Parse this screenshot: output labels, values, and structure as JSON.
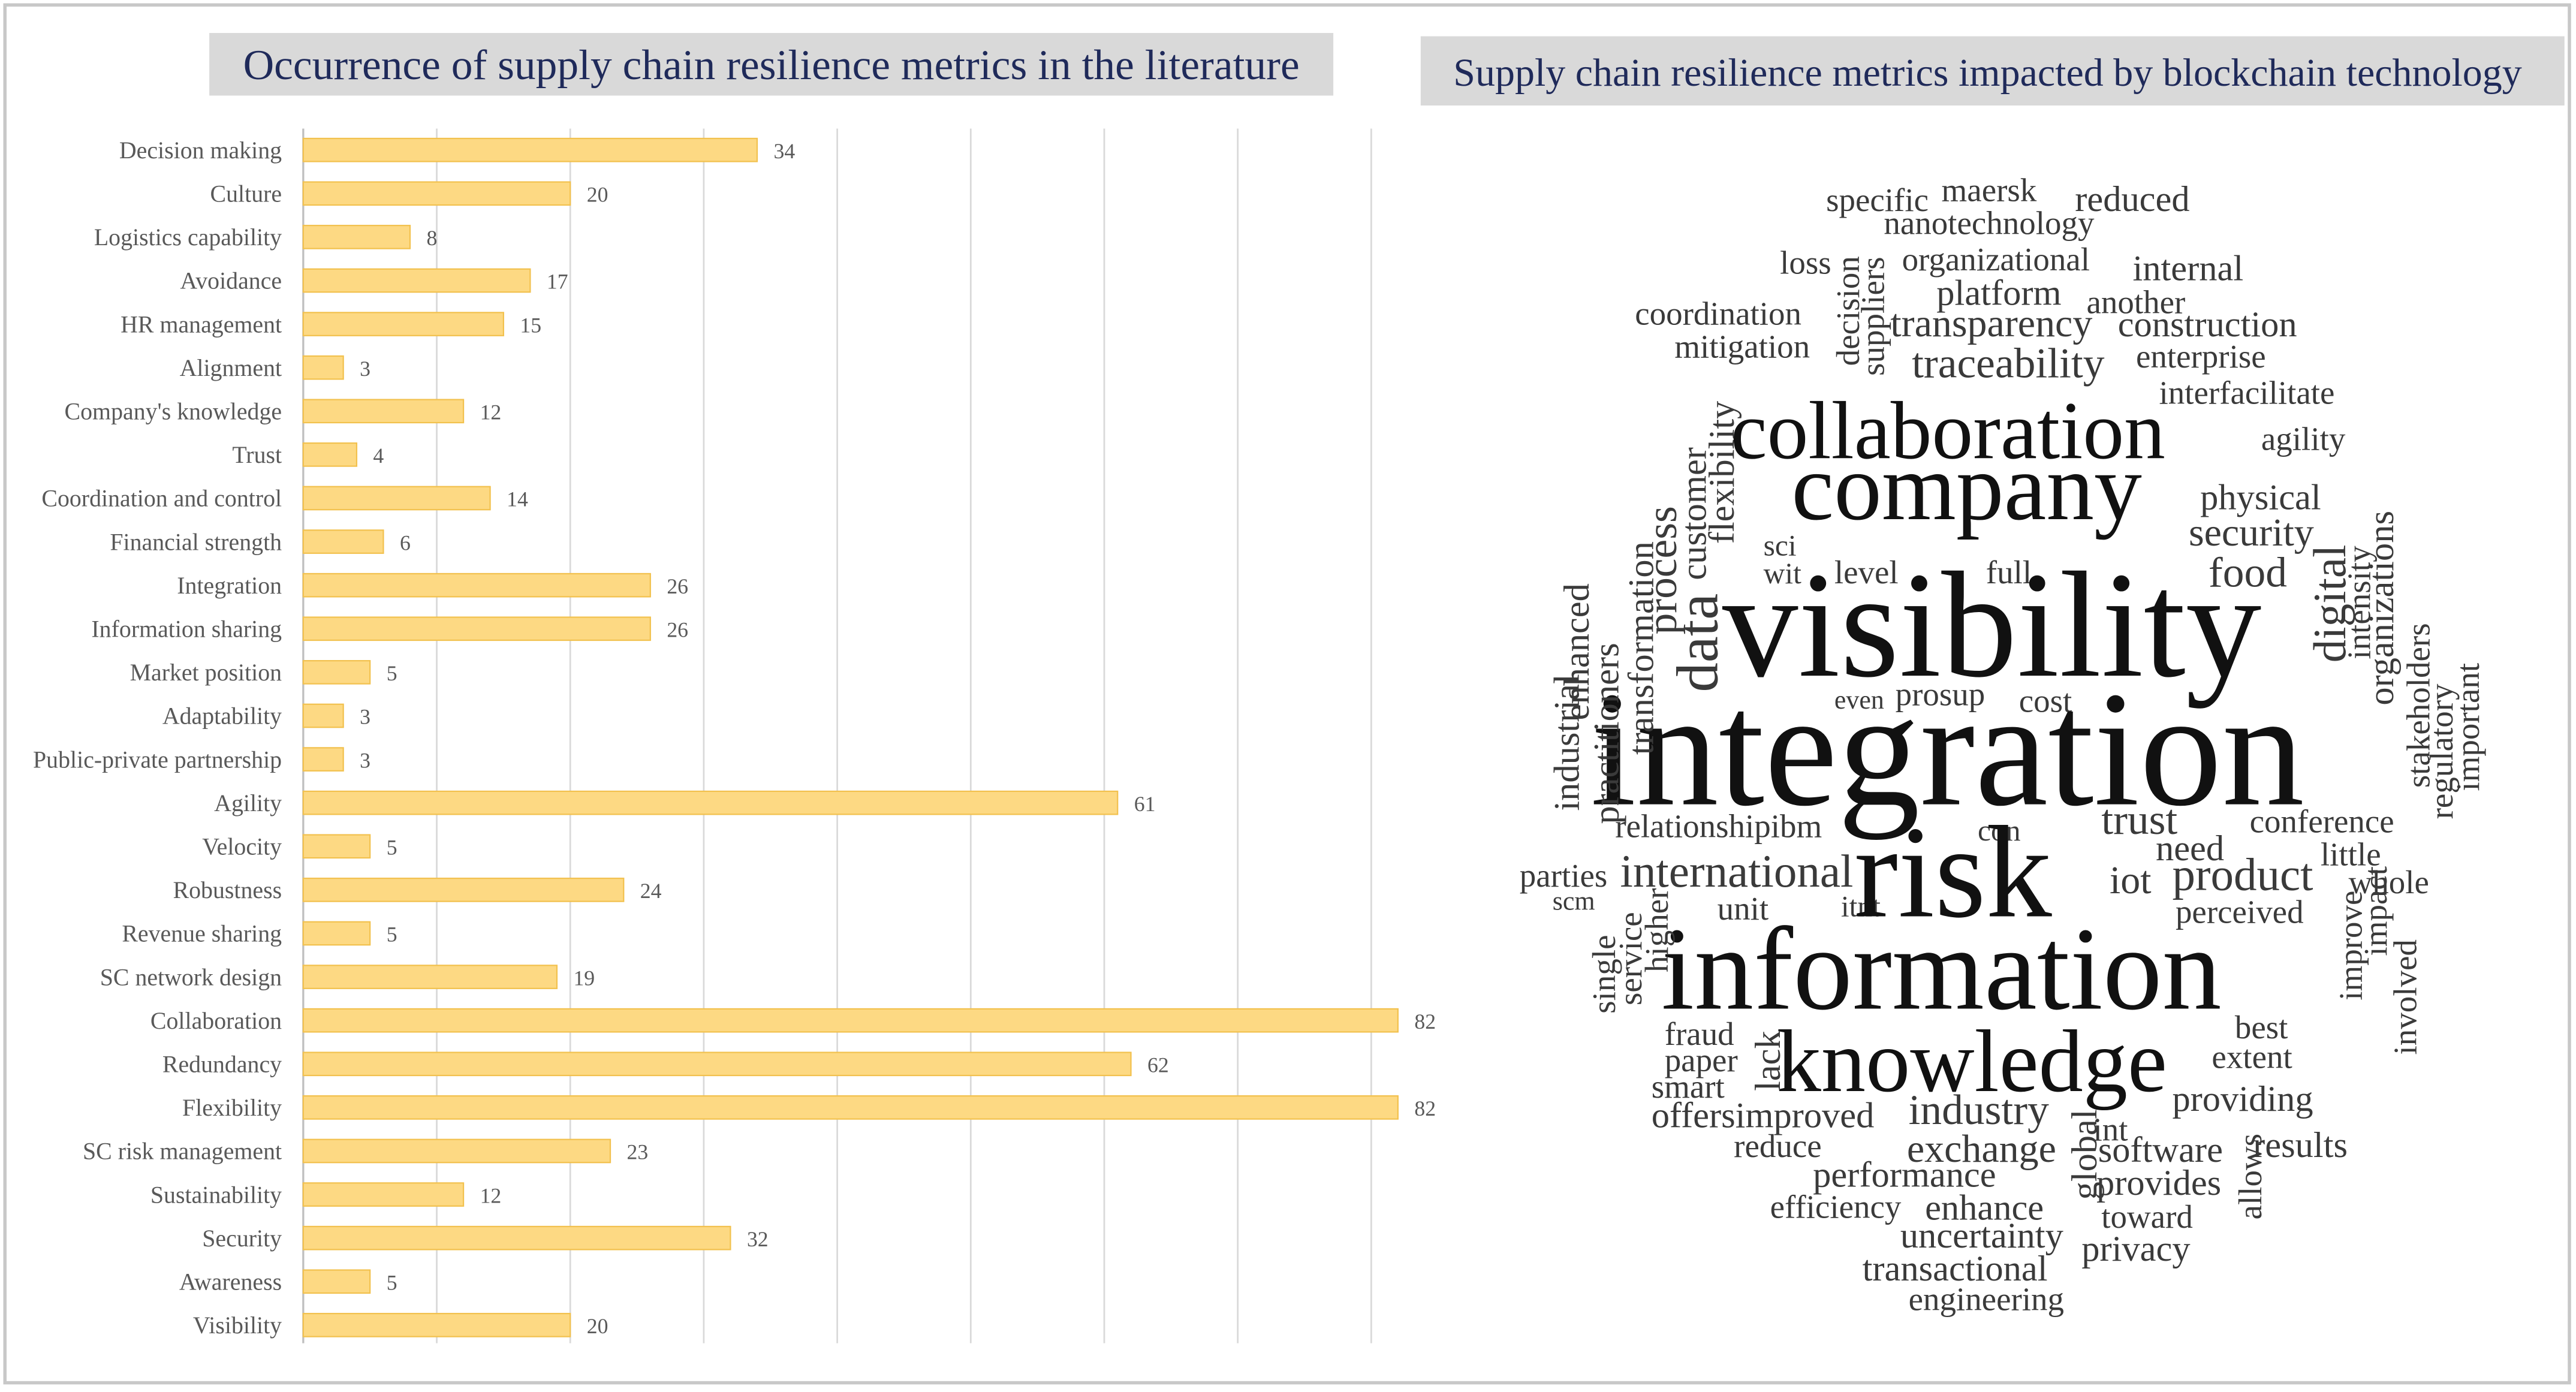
{
  "chart_data": [
    {
      "type": "bar",
      "orientation": "horizontal",
      "title": "Occurrence of supply chain resilience metrics in the literature",
      "categories": [
        "Decision making",
        "Culture",
        "Logistics capability",
        "Avoidance",
        "HR management",
        "Alignment",
        "Company's knowledge",
        "Trust",
        "Coordination and control",
        "Financial strength",
        "Integration",
        "Information sharing",
        "Market position",
        "Adaptability",
        "Public-private partnership",
        "Agility",
        "Velocity",
        "Robustness",
        "Revenue sharing",
        "SC network design",
        "Collaboration",
        "Redundancy",
        "Flexibility",
        "SC risk management",
        "Sustainability",
        "Security",
        "Awareness",
        "Visibility"
      ],
      "values": [
        34,
        20,
        8,
        17,
        15,
        3,
        12,
        4,
        14,
        6,
        26,
        26,
        5,
        3,
        3,
        61,
        5,
        24,
        5,
        19,
        82,
        62,
        82,
        23,
        12,
        32,
        5,
        20
      ],
      "color": "#fdd983",
      "xlim": [
        0,
        90
      ],
      "xticks": [
        0,
        10,
        20,
        30,
        40,
        50,
        60,
        70,
        80
      ],
      "grid": true
    },
    {
      "type": "wordcloud",
      "title": "Supply chain resilience metrics impacted by blockchain technology",
      "words": [
        "specific",
        "maersk",
        "reduced",
        "nanotechnology",
        "loss",
        "organizational",
        "internal",
        "platform",
        "another",
        "coordination",
        "transparency",
        "construction",
        "mitigation",
        "traceability",
        "enterprise",
        "interfacilitate",
        "collaboration",
        "agility",
        "company",
        "physical",
        "security",
        "sci",
        "wit",
        "level",
        "full",
        "food",
        "visibility",
        "even",
        "prosup",
        "cost",
        "integration",
        "relationshipibm",
        "con",
        "trust",
        "conference",
        "need",
        "little",
        "parties",
        "international",
        "iot",
        "product",
        "whole",
        "scm",
        "unit",
        "itnt",
        "risk",
        "perceived",
        "information",
        "best",
        "fraud",
        "paper",
        "extent",
        "knowledge",
        "smart",
        "providing",
        "industry",
        "offersimproved",
        "int",
        "reduce",
        "exchange",
        "software",
        "results",
        "performance",
        "provides",
        "efficiency",
        "enhance",
        "toward",
        "uncertainty",
        "privacy",
        "transactional",
        "engineering",
        "decision",
        "suppliers",
        "flexibility",
        "customer",
        "data",
        "process",
        "transformation",
        "practitioners",
        "enhanced",
        "industrial",
        "digital",
        "organizations",
        "intensity",
        "stakeholders",
        "regulatory",
        "important",
        "improve",
        "impact",
        "involved",
        "single",
        "service",
        "higher",
        "lack",
        "global",
        "allows"
      ]
    }
  ]
}
